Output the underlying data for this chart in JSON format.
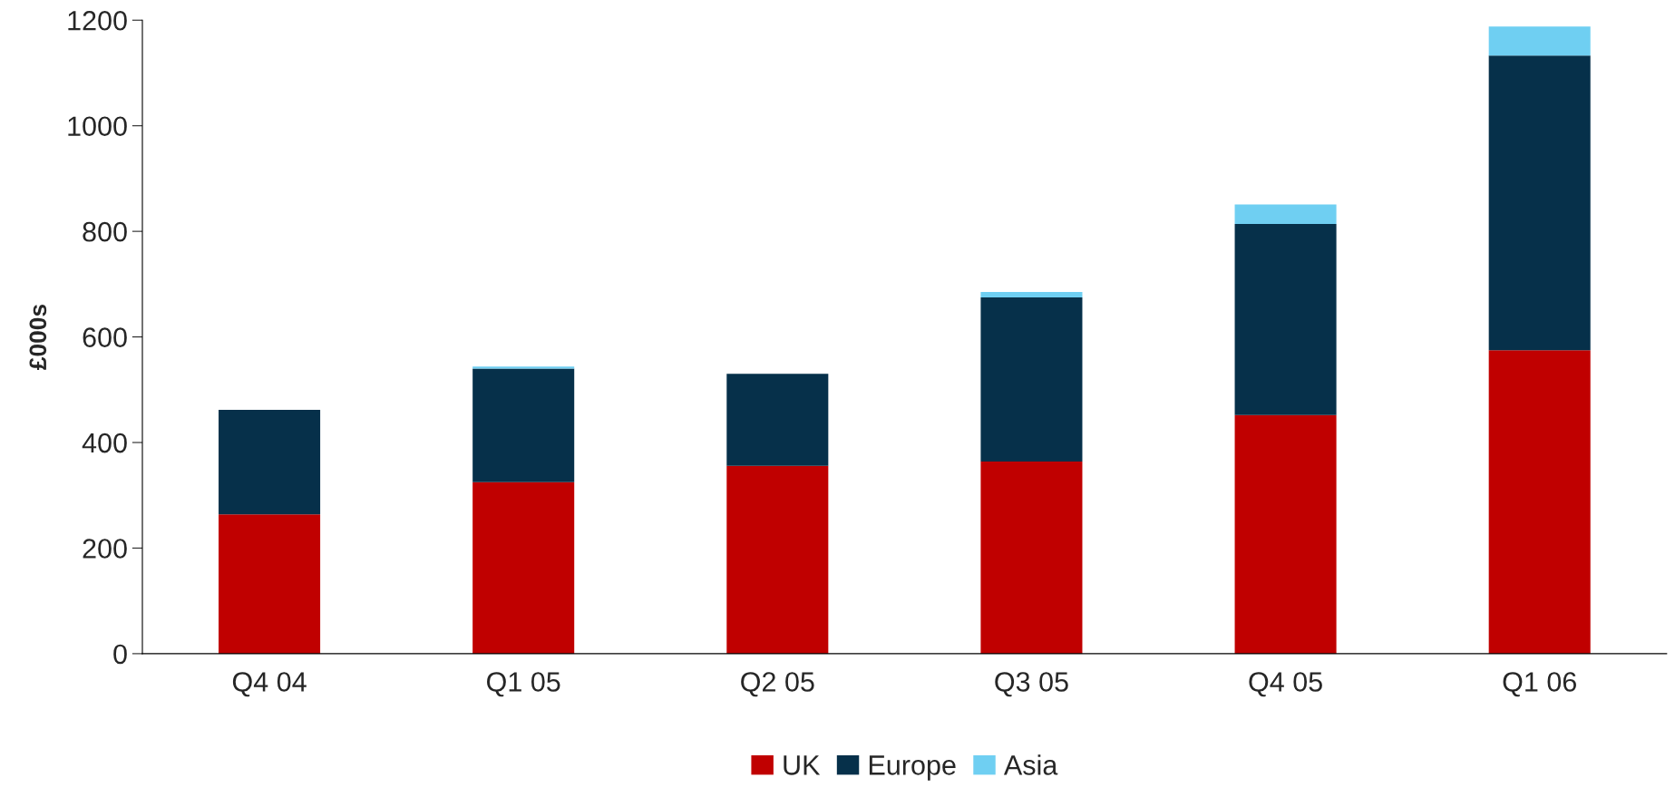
{
  "chart_data": {
    "type": "bar",
    "stacked": true,
    "ylabel": "£000s",
    "categories": [
      "Q4 04",
      "Q1 05",
      "Q2 05",
      "Q3 05",
      "Q4 05",
      "Q1 06"
    ],
    "series": [
      {
        "name": "UK",
        "color": "#c00000",
        "values": [
          264,
          325,
          356,
          364,
          452,
          575
        ]
      },
      {
        "name": "Europe",
        "color": "#06304a",
        "values": [
          198,
          215,
          174,
          311,
          362,
          558
        ]
      },
      {
        "name": "Asia",
        "color": "#6fcff2",
        "values": [
          0,
          4,
          0,
          10,
          37,
          55
        ]
      }
    ],
    "ylim": [
      0,
      1200
    ],
    "yticks": [
      0,
      200,
      400,
      600,
      800,
      1000,
      1200
    ],
    "grid": false,
    "legend": "bottom"
  }
}
